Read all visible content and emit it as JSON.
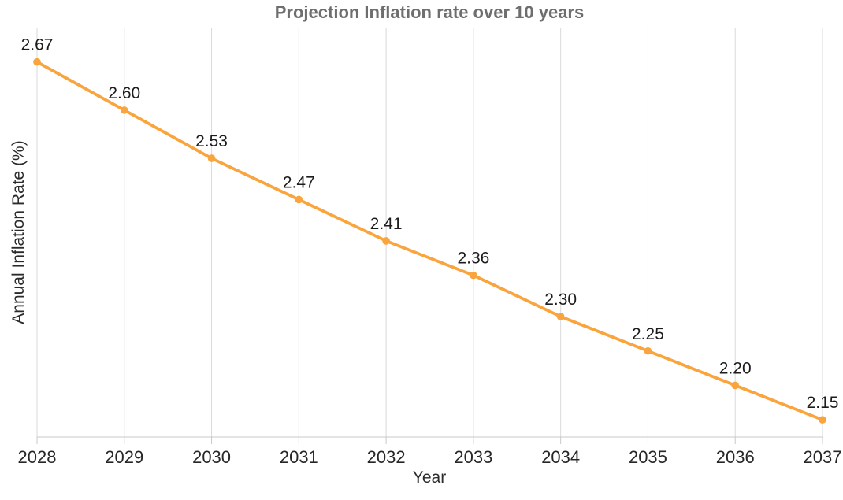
{
  "chart_data": {
    "type": "line",
    "title": "Projection Inflation rate over 10 years",
    "xlabel": "Year",
    "ylabel": "Annual Inflation Rate (%)",
    "categories": [
      "2028",
      "2029",
      "2030",
      "2031",
      "2032",
      "2033",
      "2034",
      "2035",
      "2036",
      "2037"
    ],
    "values": [
      2.67,
      2.6,
      2.53,
      2.47,
      2.41,
      2.36,
      2.3,
      2.25,
      2.2,
      2.15
    ],
    "point_labels": [
      "2.67",
      "2.60",
      "2.53",
      "2.47",
      "2.41",
      "2.36",
      "2.30",
      "2.25",
      "2.20",
      "2.15"
    ],
    "ylim": [
      2.125,
      2.72
    ],
    "grid": "vertical-only",
    "legend": "none",
    "y_axis_tick_labels": "none",
    "marker": "circle",
    "colors": {
      "line": "#F9A43C",
      "grid": "#DADADA",
      "axis": "#C9C9C9",
      "title": "#6E6E6E",
      "tick_label": "#262626",
      "data_label": "#1C1C1C",
      "axis_title": "#2B2B2B",
      "background": "#FFFFFF"
    }
  }
}
